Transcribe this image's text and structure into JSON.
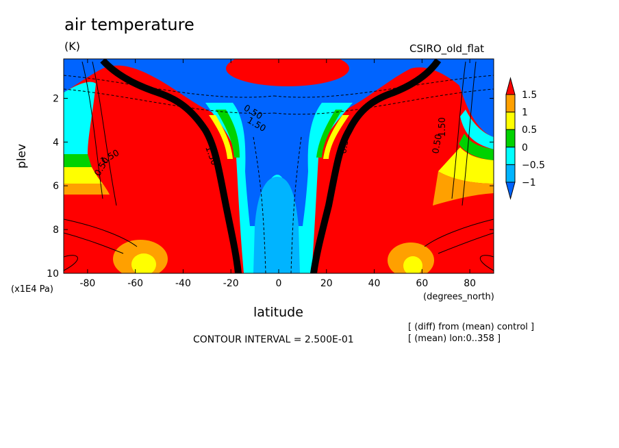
{
  "header": {
    "title": "air temperature",
    "units": "(K)",
    "dataset": "CSIRO_old_flat"
  },
  "footer": {
    "contour_interval": "CONTOUR INTERVAL = 2.500E-01",
    "note_line1": "[ (diff) from (mean) control ]",
    "note_line2": "[ (mean) lon:0..358 ]"
  },
  "colors": {
    "red": "#ff0000",
    "orange": "#ffa000",
    "yellow": "#ffff00",
    "green": "#00d200",
    "cyan": "#00ffff",
    "lightblue": "#00b4ff",
    "blue": "#0064ff",
    "contour": "#000000"
  },
  "chart_data": {
    "type": "contour",
    "title": "air temperature",
    "subtitle": "(K)",
    "xlabel": "latitude",
    "xunits": "(degrees_north)",
    "ylabel": "plev",
    "yunits": "(x1E4 Pa)",
    "xlim": [
      -90,
      90
    ],
    "ylim": [
      10,
      0.2
    ],
    "x_ticks": [
      -80,
      -60,
      -40,
      -20,
      0,
      20,
      40,
      60,
      80
    ],
    "y_ticks": [
      2,
      4,
      6,
      8,
      10
    ],
    "contour_interval": 0.25,
    "colorbar": {
      "levels": [
        1.5,
        1,
        0.5,
        0,
        -0.5,
        -1
      ],
      "colors": [
        "#ffa000",
        "#ffff00",
        "#00d200",
        "#00ffff",
        "#00b4ff"
      ],
      "over_color": "#ff0000",
      "under_color": "#0064ff"
    },
    "contour_labels": [
      "1.50",
      "0.50",
      "0.50",
      "1.50",
      "1.50",
      "0.50",
      "0.50",
      "1.50"
    ]
  }
}
